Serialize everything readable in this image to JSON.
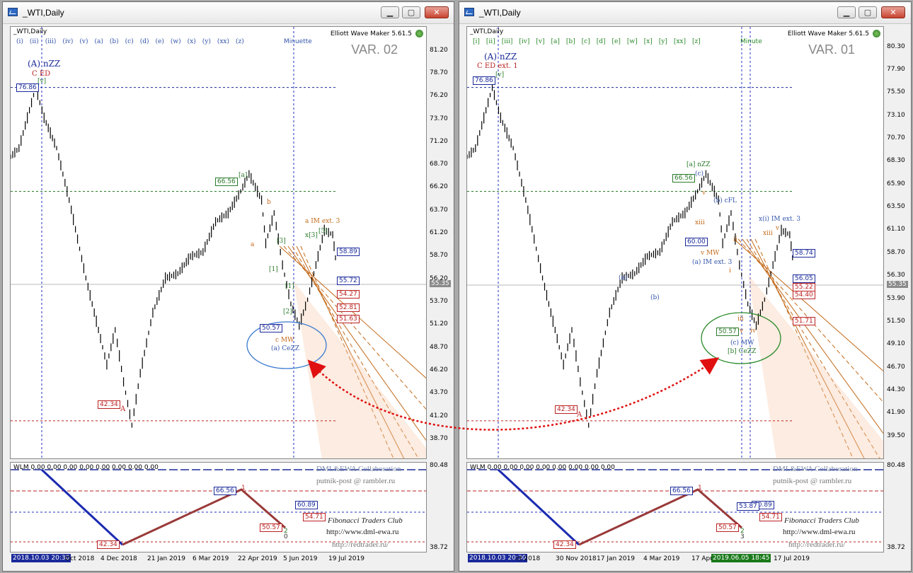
{
  "windows": [
    {
      "title": "_WTI,Daily",
      "symbol_label": "_WTI,Daily",
      "maker": "Elliott Wave Maker 5.61.5",
      "variant": "VAR. 02",
      "wave_row": [
        "(i)",
        "(ii)",
        "(iii)",
        "(iv)",
        "(v)",
        "(a)",
        "(b)",
        "(c)",
        "(d)",
        "(e)",
        "(w)",
        "(x)",
        "(y)",
        "(xx)",
        "(z)"
      ],
      "wave_degree": "Minuette",
      "price_scale": [
        "81.20",
        "78.70",
        "76.20",
        "73.70",
        "71.20",
        "68.70",
        "66.20",
        "63.70",
        "61.20",
        "58.70",
        "56.20",
        "53.70",
        "51.20",
        "48.70",
        "46.20",
        "43.70",
        "41.20",
        "38.70"
      ],
      "current_price": "55.35",
      "ind_scale": [
        "80.48",
        "38.72"
      ],
      "time_scale": [
        "2018.10.03 20:30",
        "Oct 2018",
        "4 Dec 2018",
        "21 Jan 2019",
        "6 Mar 2019",
        "22 Apr 2019",
        "5 Jun 2019",
        "19 Jul 2019"
      ],
      "price_boxes": [
        "76.86",
        "66.56",
        "42.34",
        "50.57",
        "58.89",
        "55.72",
        "54.27",
        "52.81",
        "51.63"
      ],
      "annotations": [
        "(A) nZZ",
        "C ED",
        "[v]",
        "[a]",
        "b",
        "a",
        "A",
        "a IM ext. 3",
        "x[3]",
        "[5]",
        "[3]",
        "[1]",
        "[1]",
        "[2]",
        "c MW",
        "(a) CeZZ"
      ],
      "ind_label": "WLM 0.00 0.00 0.00 0.00 0.00 0.00 0.00 0.00",
      "ind_boxes": [
        "66.56",
        "60.89",
        "54.71",
        "50.57",
        "42.34"
      ],
      "ind_marks": [
        "1",
        "2",
        "0"
      ],
      "credits": [
        "DML&EWA Collaboration",
        "putnik-post @ rambler.ru",
        "Fibonacci Traders Club",
        "http://www.dml-ewa.ru",
        "http://redtrader.ru/"
      ]
    },
    {
      "title": "_WTI,Daily",
      "symbol_label": "_WTI,Daily",
      "maker": "Elliott Wave Maker 5.61.5",
      "variant": "VAR. 01",
      "wave_row": [
        "[i]",
        "[ii]",
        "[iii]",
        "[iv]",
        "[v]",
        "[a]",
        "[b]",
        "[c]",
        "[d]",
        "[e]",
        "[w]",
        "[x]",
        "[y]",
        "[xx]",
        "[z]"
      ],
      "wave_degree": "Minute",
      "price_scale": [
        "80.30",
        "77.90",
        "75.50",
        "73.10",
        "70.70",
        "68.30",
        "65.90",
        "63.50",
        "61.10",
        "58.70",
        "56.30",
        "53.90",
        "51.50",
        "49.10",
        "46.70",
        "44.30",
        "41.90",
        "39.50"
      ],
      "current_price": "55.35",
      "ind_scale": [
        "80.48",
        "38.72"
      ],
      "time_scale": [
        "2018.10.03 20:30",
        "ct 2018",
        "30 Nov 2018",
        "17 Jan 2019",
        "4 Mar 2019",
        "17 Apr",
        "2019.06.05 18:45",
        "17 Jul 2019"
      ],
      "price_boxes": [
        "76.86",
        "66.56",
        "42.34",
        "60.00",
        "50.57",
        "58.74",
        "56.05",
        "55.22",
        "54.40",
        "51.71"
      ],
      "annotations": [
        "(A) nZZ",
        "C ED ext. 1",
        "[v]",
        "[a] nZZ",
        "(c)",
        "v",
        "(b) cFL",
        "xiii",
        "v MW",
        "(a) IM ext. 3",
        "(a)",
        "(b)",
        "A",
        "ii",
        "i",
        "iii",
        "v",
        "iv",
        "x(i) IM ext. 3",
        "xiii",
        "v",
        "(c) MW",
        "[b] CeZZ"
      ],
      "ind_label": "WLM 0.00 0.00 0.00 0.00 0.00 0.00 0.00 0.00",
      "ind_boxes": [
        "66.56",
        "60.89",
        "53.87",
        "54.71",
        "50.57",
        "42.34"
      ],
      "ind_marks": [
        "1",
        "2",
        "3"
      ],
      "credits": [
        "DML&EWA Collaboration",
        "putnik-post @ rambler.ru",
        "Fibonacci Traders Club",
        "http://www.dml-ewa.ru",
        "http://redtrader.ru/"
      ]
    }
  ]
}
